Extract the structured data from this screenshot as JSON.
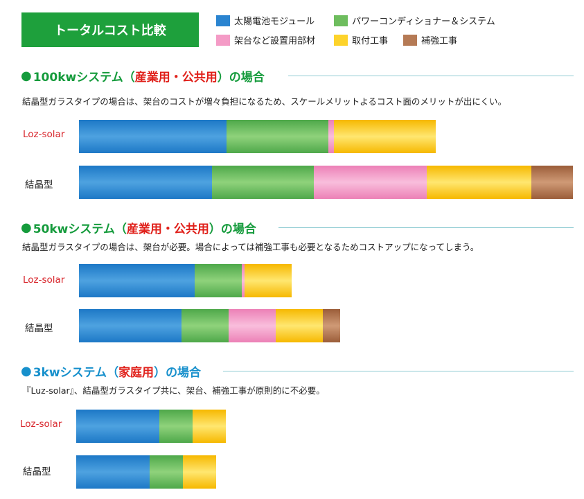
{
  "title": "トータルコスト比較",
  "legend": [
    {
      "label": "太陽電池モジュール",
      "color": "#2a84d0",
      "key": "module"
    },
    {
      "label": "パワーコンディショナー＆システム",
      "color": "#6ebd5e",
      "key": "pcs"
    },
    {
      "label": "架台など設置用部材",
      "color": "#f49bc6",
      "key": "mount"
    },
    {
      "label": "取付工事",
      "color": "#fdd32b",
      "key": "install"
    },
    {
      "label": "補強工事",
      "color": "#b57a55",
      "key": "reinforce"
    }
  ],
  "sections": [
    {
      "prefix": "100kwシステム",
      "paren_open": "（",
      "highlight": "産業用・公共用",
      "paren_close": "）",
      "suffix": "の場合",
      "color_class": "green",
      "description": "結晶型ガラスタイプの場合は、架台のコストが増々負担になるため、スケールメリットよるコスト面のメリットが出にくい。"
    },
    {
      "prefix": "50kwシステム",
      "paren_open": "（",
      "highlight": "産業用・公共用",
      "paren_close": "）",
      "suffix": "の場合",
      "color_class": "green",
      "description": "結晶型ガラスタイプの場合は、架台が必要。場合によっては補強工事も必要となるためコストアップになってしまう。"
    },
    {
      "prefix": "3kwシステム",
      "paren_open": "（",
      "highlight": "家庭用",
      "paren_close": "）",
      "suffix": "の場合",
      "color_class": "blue",
      "description": "『Luz-solar』、結晶型ガラスタイプ共に、架台、補強工事が原則的に不必要。"
    }
  ],
  "row_labels": {
    "loz": "Loz-solar",
    "kessho": "結晶型"
  },
  "chart_data": [
    {
      "type": "bar",
      "orientation": "horizontal",
      "stacked": true,
      "categories": [
        "Loz-solar",
        "結晶型"
      ],
      "series": [
        {
          "name": "太陽電池モジュール",
          "values": [
            213,
            192
          ]
        },
        {
          "name": "パワーコンディショナー＆システム",
          "values": [
            147,
            147
          ]
        },
        {
          "name": "架台など設置用部材",
          "values": [
            8,
            163
          ]
        },
        {
          "name": "取付工事",
          "values": [
            147,
            151
          ]
        },
        {
          "name": "補強工事",
          "values": [
            0,
            60
          ]
        }
      ]
    },
    {
      "type": "bar",
      "orientation": "horizontal",
      "stacked": true,
      "categories": [
        "Loz-solar",
        "結晶型"
      ],
      "series": [
        {
          "name": "太陽電池モジュール",
          "values": [
            167,
            148
          ]
        },
        {
          "name": "パワーコンディショナー＆システム",
          "values": [
            68,
            68
          ]
        },
        {
          "name": "架台など設置用部材",
          "values": [
            4,
            68
          ]
        },
        {
          "name": "取付工事",
          "values": [
            68,
            68
          ]
        },
        {
          "name": "補強工事",
          "values": [
            0,
            25
          ]
        }
      ]
    },
    {
      "type": "bar",
      "orientation": "horizontal",
      "stacked": true,
      "categories": [
        "Loz-solar",
        "結晶型"
      ],
      "series": [
        {
          "name": "太陽電池モジュール",
          "values": [
            120,
            106
          ]
        },
        {
          "name": "パワーコンディショナー＆システム",
          "values": [
            48,
            48
          ]
        },
        {
          "name": "架台など設置用部材",
          "values": [
            0,
            0
          ]
        },
        {
          "name": "取付工事",
          "values": [
            48,
            48
          ]
        },
        {
          "name": "補強工事",
          "values": [
            0,
            0
          ]
        }
      ]
    }
  ]
}
